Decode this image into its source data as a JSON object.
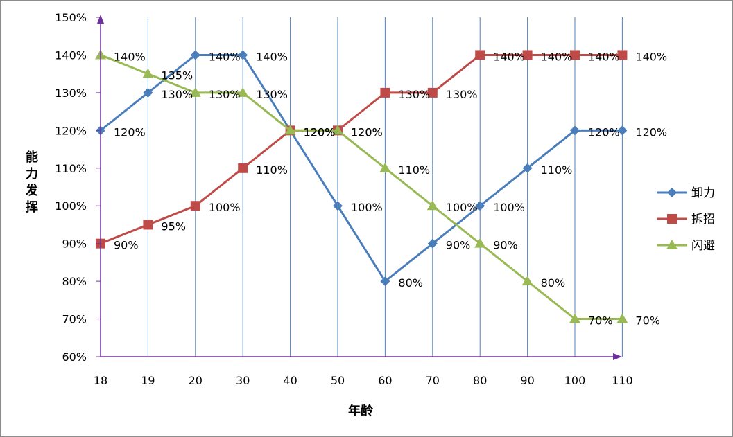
{
  "chart_data": {
    "type": "line",
    "xlabel": "年龄",
    "ylabel": "能力发挥",
    "categories": [
      "18",
      "19",
      "20",
      "30",
      "40",
      "50",
      "60",
      "70",
      "80",
      "90",
      "100",
      "110"
    ],
    "ylim": [
      60,
      150
    ],
    "y_ticks": [
      "60%",
      "70%",
      "80%",
      "90%",
      "100%",
      "110%",
      "120%",
      "130%",
      "140%",
      "150%"
    ],
    "value_suffix": "%",
    "grid": "vertical-lines",
    "legend_position": "right",
    "series": [
      {
        "name": "卸力",
        "color": "#4a7ebb",
        "marker": "diamond",
        "values": [
          120,
          130,
          140,
          140,
          120,
          100,
          80,
          90,
          100,
          110,
          120,
          120
        ]
      },
      {
        "name": "拆招",
        "color": "#be4b48",
        "marker": "square",
        "values": [
          90,
          95,
          100,
          110,
          120,
          120,
          130,
          130,
          140,
          140,
          140,
          140
        ]
      },
      {
        "name": "闪避",
        "color": "#98b954",
        "marker": "triangle",
        "values": [
          140,
          135,
          130,
          130,
          120,
          120,
          110,
          100,
          90,
          80,
          70,
          70
        ]
      }
    ],
    "axis_color": "#7030a0",
    "grid_color": "#4f81bd"
  }
}
